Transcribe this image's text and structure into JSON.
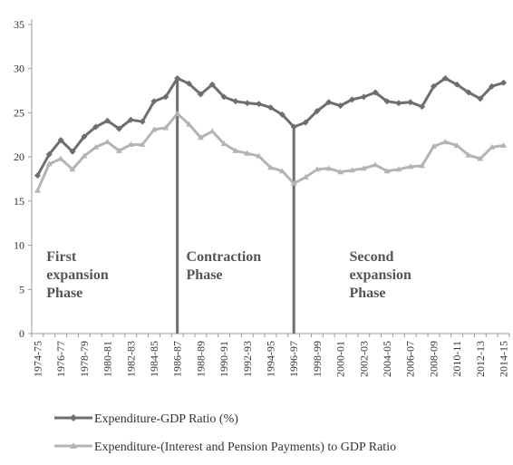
{
  "chart_data": {
    "type": "line",
    "title": "",
    "xlabel": "",
    "ylabel": "",
    "ylim": [
      0,
      35
    ],
    "yticks": [
      0,
      5,
      10,
      15,
      20,
      25,
      30,
      35
    ],
    "grid": false,
    "legend_position": "bottom",
    "x_tick_labels": [
      "1974-75",
      "1976-77",
      "1978-79",
      "1980-81",
      "1982-83",
      "1984-85",
      "1986-87",
      "1988-89",
      "1990-91",
      "1992-93",
      "1994-95",
      "1996-97",
      "1998-99",
      "2000-01",
      "2002-03",
      "2004-05",
      "2006-07",
      "2008-09",
      "2010-11",
      "2012-13",
      "2014-15"
    ],
    "x": [
      "1974-75",
      "1975-76",
      "1976-77",
      "1977-78",
      "1978-79",
      "1979-80",
      "1980-81",
      "1981-82",
      "1982-83",
      "1983-84",
      "1984-85",
      "1985-86",
      "1986-87",
      "1987-88",
      "1988-89",
      "1989-90",
      "1990-91",
      "1991-92",
      "1992-93",
      "1993-94",
      "1994-95",
      "1995-96",
      "1996-97",
      "1997-98",
      "1998-99",
      "1999-00",
      "2000-01",
      "2001-02",
      "2002-03",
      "2003-04",
      "2004-05",
      "2005-06",
      "2006-07",
      "2007-08",
      "2008-09",
      "2009-10",
      "2010-11",
      "2011-12",
      "2012-13",
      "2013-14",
      "2014-15"
    ],
    "series": [
      {
        "name": "Expenditure-GDP Ratio (%)",
        "color": "#6e6e6e",
        "marker": "diamond",
        "values": [
          17.9,
          20.3,
          21.9,
          20.6,
          22.3,
          23.4,
          24.1,
          23.2,
          24.2,
          24.0,
          26.3,
          26.8,
          28.9,
          28.3,
          27.1,
          28.2,
          26.8,
          26.3,
          26.1,
          26.0,
          25.6,
          24.8,
          23.4,
          23.9,
          25.2,
          26.2,
          25.8,
          26.5,
          26.8,
          27.3,
          26.3,
          26.1,
          26.2,
          25.7,
          28.0,
          28.9,
          28.2,
          27.3,
          26.6,
          28.0,
          28.4
        ]
      },
      {
        "name": "Expenditure-(Interest and Pension Payments) to GDP Ratio",
        "color": "#b4b4b4",
        "marker": "triangle",
        "values": [
          16.2,
          19.2,
          19.8,
          18.6,
          20.1,
          21.1,
          21.7,
          20.7,
          21.4,
          21.4,
          23.1,
          23.3,
          24.9,
          23.7,
          22.2,
          22.9,
          21.5,
          20.7,
          20.4,
          20.1,
          18.8,
          18.4,
          17.0,
          17.7,
          18.6,
          18.7,
          18.3,
          18.5,
          18.7,
          19.1,
          18.4,
          18.6,
          18.9,
          19.0,
          21.2,
          21.7,
          21.3,
          20.2,
          19.8,
          21.1,
          21.3
        ]
      }
    ],
    "phase_lines": [
      "1986-87",
      "1996-97"
    ],
    "annotations": [
      {
        "lines": [
          "First",
          "expansion",
          "Phase"
        ],
        "x": "1975-76",
        "y": 8.2
      },
      {
        "lines": [
          "Contraction",
          "Phase"
        ],
        "x": "1987-88",
        "y": 8.2
      },
      {
        "lines": [
          "Second",
          "expansion",
          "Phase"
        ],
        "x": "2001-02",
        "y": 8.2
      }
    ]
  }
}
